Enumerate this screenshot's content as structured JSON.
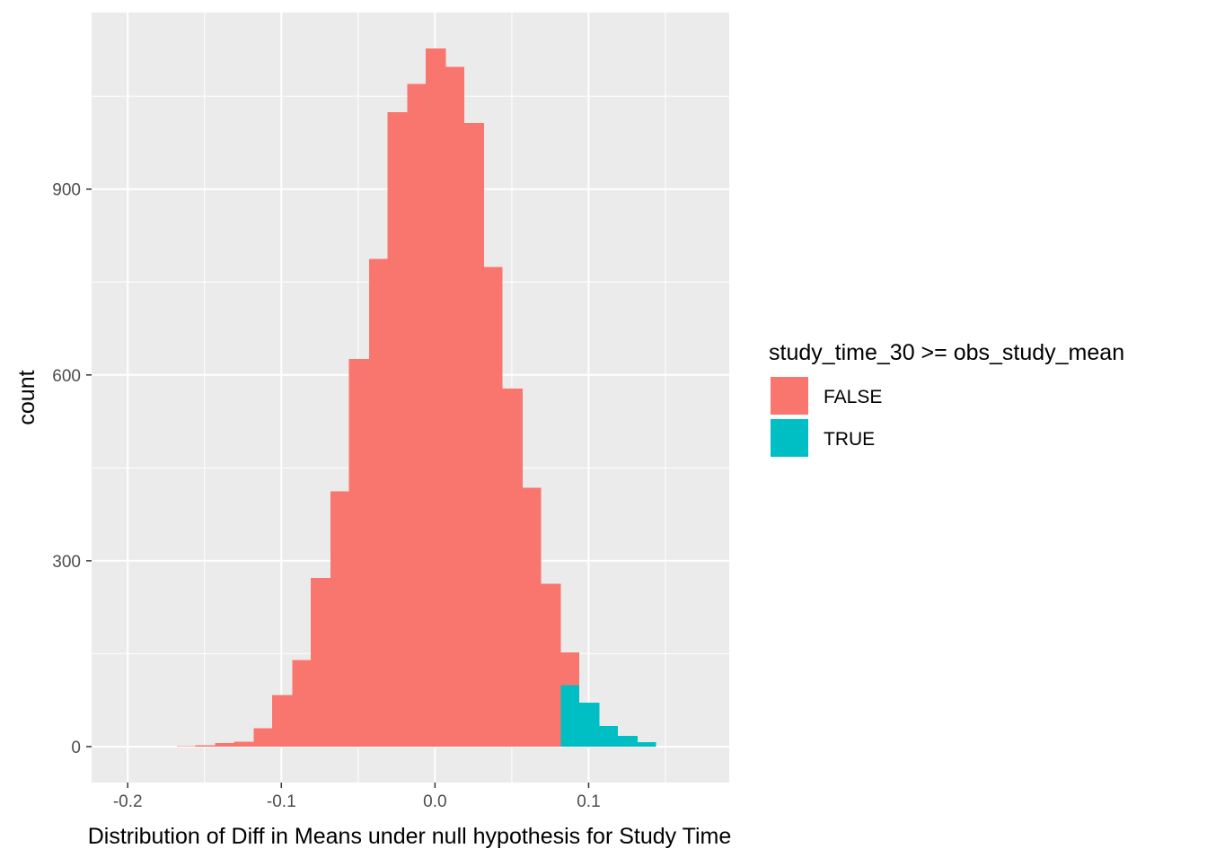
{
  "chart_data": {
    "type": "bar",
    "title": "",
    "xlabel": "Distribution of Diff in Means under null hypothesis for Study Time",
    "ylabel": "count",
    "xlim": [
      -0.2235,
      0.1915
    ],
    "ylim": [
      -58,
      1185
    ],
    "x_ticks": [
      -0.2,
      -0.1,
      0.0,
      0.1
    ],
    "x_tick_labels": [
      "-0.2",
      "-0.1",
      "0.0",
      "0.1"
    ],
    "y_ticks": [
      0,
      300,
      600,
      900
    ],
    "y_tick_labels": [
      "0",
      "300",
      "600",
      "900"
    ],
    "grid": true,
    "legend": {
      "position": "right",
      "title": "study_time_30 >= obs_study_mean",
      "entries": [
        {
          "label": "FALSE",
          "color": "#F8766D"
        },
        {
          "label": "TRUE",
          "color": "#00BFC4"
        }
      ]
    },
    "bin_width": 0.0125,
    "series": [
      {
        "name": "FALSE",
        "color": "#F8766D",
        "bins": [
          {
            "xmin": -0.168,
            "xmax": -0.156,
            "count": 1
          },
          {
            "xmin": -0.156,
            "xmax": -0.143,
            "count": 2
          },
          {
            "xmin": -0.143,
            "xmax": -0.131,
            "count": 6
          },
          {
            "xmin": -0.131,
            "xmax": -0.118,
            "count": 8
          },
          {
            "xmin": -0.118,
            "xmax": -0.106,
            "count": 30
          },
          {
            "xmin": -0.106,
            "xmax": -0.093,
            "count": 83
          },
          {
            "xmin": -0.093,
            "xmax": -0.081,
            "count": 140
          },
          {
            "xmin": -0.081,
            "xmax": -0.068,
            "count": 272
          },
          {
            "xmin": -0.068,
            "xmax": -0.056,
            "count": 412
          },
          {
            "xmin": -0.056,
            "xmax": -0.043,
            "count": 626
          },
          {
            "xmin": -0.043,
            "xmax": -0.031,
            "count": 787
          },
          {
            "xmin": -0.031,
            "xmax": -0.018,
            "count": 1024
          },
          {
            "xmin": -0.018,
            "xmax": -0.006,
            "count": 1070
          },
          {
            "xmin": -0.006,
            "xmax": 0.007,
            "count": 1127
          },
          {
            "xmin": 0.007,
            "xmax": 0.019,
            "count": 1097
          },
          {
            "xmin": 0.019,
            "xmax": 0.032,
            "count": 1007
          },
          {
            "xmin": 0.032,
            "xmax": 0.044,
            "count": 774
          },
          {
            "xmin": 0.044,
            "xmax": 0.057,
            "count": 578
          },
          {
            "xmin": 0.057,
            "xmax": 0.069,
            "count": 418
          },
          {
            "xmin": 0.069,
            "xmax": 0.082,
            "count": 263
          },
          {
            "xmin": 0.082,
            "xmax": 0.094,
            "count": 152
          }
        ]
      },
      {
        "name": "TRUE",
        "color": "#00BFC4",
        "bins": [
          {
            "xmin": 0.082,
            "xmax": 0.094,
            "count": 99
          },
          {
            "xmin": 0.094,
            "xmax": 0.107,
            "count": 71
          },
          {
            "xmin": 0.107,
            "xmax": 0.119,
            "count": 33
          },
          {
            "xmin": 0.119,
            "xmax": 0.132,
            "count": 17
          },
          {
            "xmin": 0.132,
            "xmax": 0.144,
            "count": 7
          }
        ]
      }
    ],
    "colors": {
      "panel_background": "#EBEBEB",
      "grid": "#FFFFFF",
      "axis_text": "#4D4D4D",
      "text": "#000000"
    }
  }
}
